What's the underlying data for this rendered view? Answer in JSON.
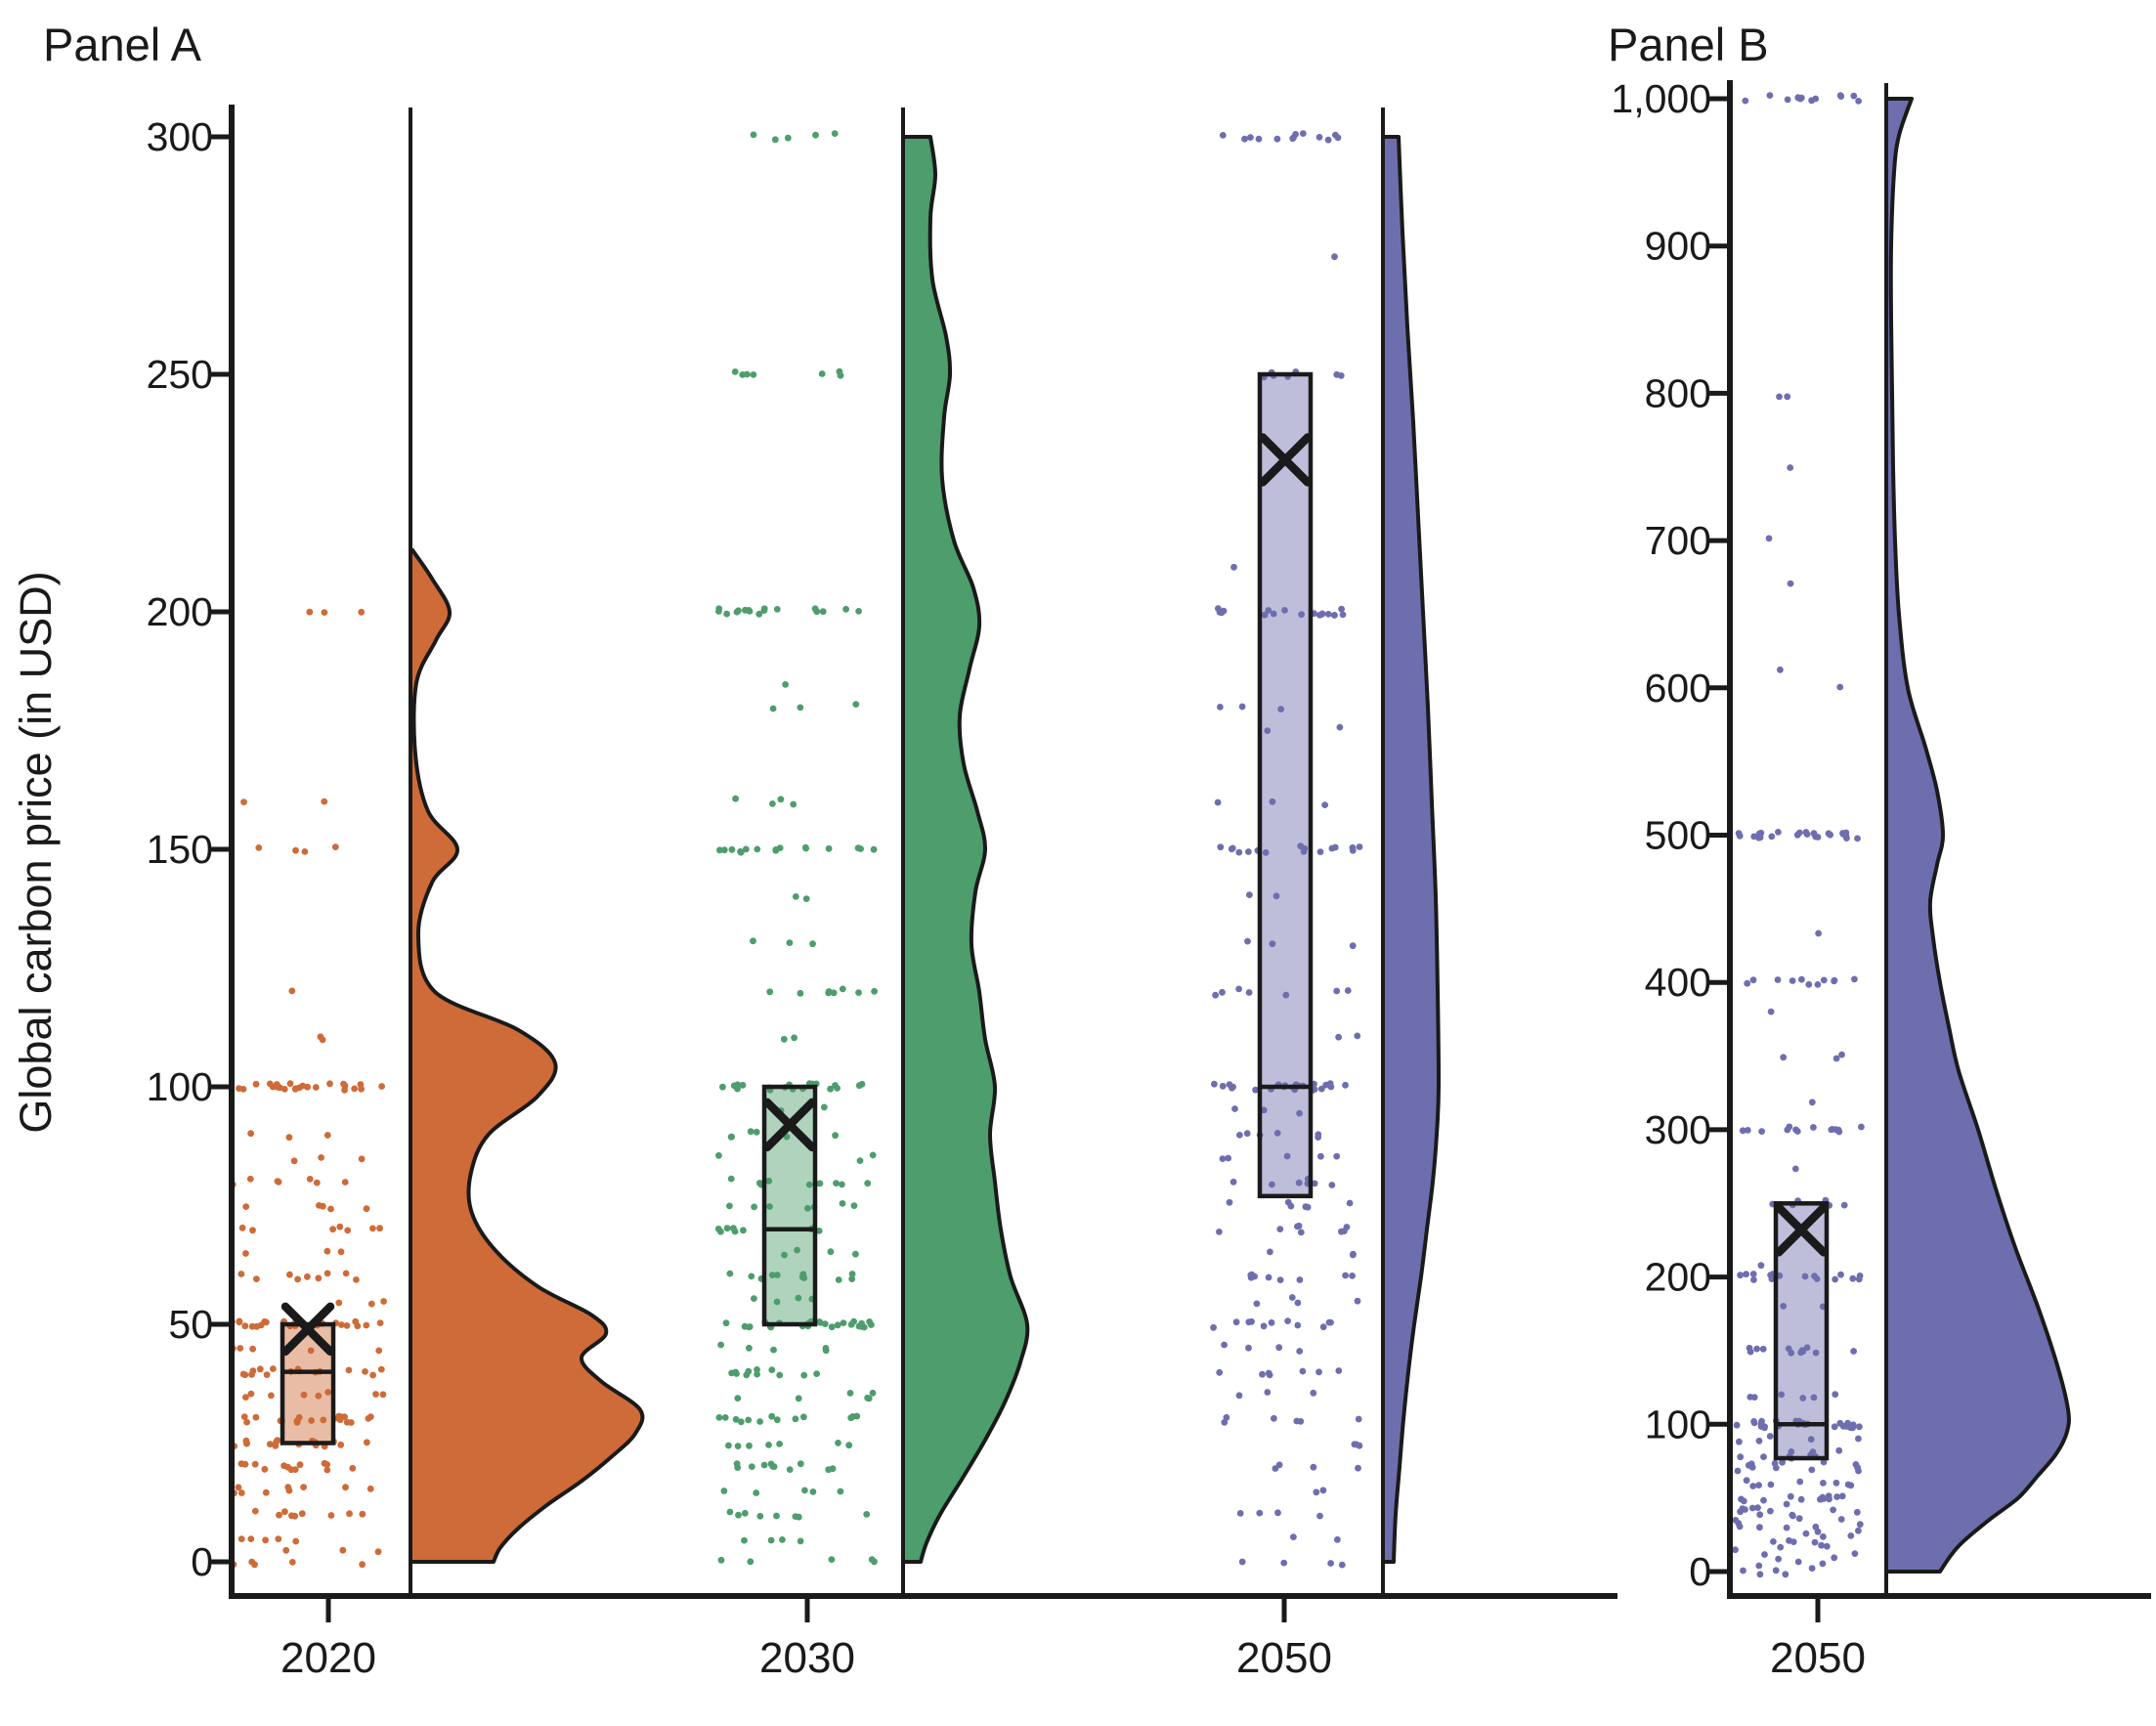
{
  "figure": {
    "panel_a_title": "Panel A",
    "panel_b_title": "Panel B",
    "y_axis_label": "Global carbon price (in USD)"
  },
  "colors": {
    "orange": "#CE6B38",
    "green": "#4E9D6C",
    "purple": "#6E6EAF",
    "ink": "#1a1a1a",
    "box_fill_opacity": 0.45
  },
  "chart_data": [
    {
      "type": "raincloud",
      "panel": "A",
      "title": "Panel A",
      "ylabel": "Global carbon price (in USD)",
      "ylim": [
        0,
        300
      ],
      "ytick_values": [
        0,
        50,
        100,
        150,
        200,
        250,
        300
      ],
      "ytick_labels": [
        "0",
        "50",
        "100",
        "150",
        "200",
        "250",
        "300"
      ],
      "categories": [
        "2020",
        "2030",
        "2050"
      ],
      "legend": "none",
      "grid": false,
      "series": [
        {
          "name": "2020",
          "color": "#CE6B38",
          "box": {
            "q1": 25,
            "median": 40,
            "q3": 50,
            "mean": 49
          },
          "points_by_value": [
            [
              200,
              3
            ],
            [
              160,
              2
            ],
            [
              150,
              4
            ],
            [
              120,
              1
            ],
            [
              110,
              2
            ],
            [
              100,
              24
            ],
            [
              90,
              3
            ],
            [
              85,
              3
            ],
            [
              80,
              7
            ],
            [
              75,
              5
            ],
            [
              70,
              7
            ],
            [
              65,
              3
            ],
            [
              60,
              9
            ],
            [
              55,
              3
            ],
            [
              50,
              26
            ],
            [
              45,
              5
            ],
            [
              40,
              16
            ],
            [
              35,
              8
            ],
            [
              30,
              20
            ],
            [
              25,
              16
            ],
            [
              20,
              13
            ],
            [
              15,
              9
            ],
            [
              10,
              9
            ],
            [
              5,
              5
            ],
            [
              2,
              3
            ],
            [
              0,
              5
            ]
          ],
          "density_profile": [
            [
              213,
              2
            ],
            [
              207,
              22
            ],
            [
              200,
              40
            ],
            [
              194,
              26
            ],
            [
              185,
              6
            ],
            [
              170,
              5
            ],
            [
              158,
              18
            ],
            [
              150,
              48
            ],
            [
              143,
              22
            ],
            [
              132,
              8
            ],
            [
              120,
              25
            ],
            [
              112,
              110
            ],
            [
              105,
              148
            ],
            [
              98,
              130
            ],
            [
              90,
              80
            ],
            [
              82,
              62
            ],
            [
              74,
              62
            ],
            [
              66,
              85
            ],
            [
              58,
              130
            ],
            [
              52,
              185
            ],
            [
              48,
              200
            ],
            [
              43,
              175
            ],
            [
              38,
              195
            ],
            [
              32,
              235
            ],
            [
              27,
              230
            ],
            [
              22,
              205
            ],
            [
              17,
              175
            ],
            [
              12,
              140
            ],
            [
              7,
              110
            ],
            [
              3,
              92
            ],
            [
              0,
              85
            ]
          ]
        },
        {
          "name": "2030",
          "color": "#4E9D6C",
          "box": {
            "q1": 50,
            "median": 70,
            "q3": 100,
            "mean": 92
          },
          "points_by_value": [
            [
              300,
              5
            ],
            [
              250,
              7
            ],
            [
              200,
              17
            ],
            [
              185,
              1
            ],
            [
              180,
              3
            ],
            [
              160,
              4
            ],
            [
              150,
              16
            ],
            [
              140,
              2
            ],
            [
              130,
              3
            ],
            [
              120,
              8
            ],
            [
              110,
              2
            ],
            [
              100,
              20
            ],
            [
              95,
              2
            ],
            [
              90,
              6
            ],
            [
              85,
              3
            ],
            [
              80,
              11
            ],
            [
              75,
              7
            ],
            [
              70,
              9
            ],
            [
              65,
              4
            ],
            [
              60,
              11
            ],
            [
              55,
              4
            ],
            [
              50,
              28
            ],
            [
              45,
              5
            ],
            [
              40,
              11
            ],
            [
              35,
              6
            ],
            [
              30,
              13
            ],
            [
              25,
              7
            ],
            [
              20,
              11
            ],
            [
              15,
              5
            ],
            [
              10,
              8
            ],
            [
              5,
              4
            ],
            [
              0,
              5
            ]
          ],
          "density_profile": [
            [
              300,
              28
            ],
            [
              292,
              33
            ],
            [
              283,
              28
            ],
            [
              270,
              30
            ],
            [
              258,
              44
            ],
            [
              250,
              48
            ],
            [
              241,
              42
            ],
            [
              228,
              40
            ],
            [
              215,
              52
            ],
            [
              205,
              72
            ],
            [
              197,
              78
            ],
            [
              188,
              68
            ],
            [
              178,
              58
            ],
            [
              168,
              62
            ],
            [
              158,
              76
            ],
            [
              150,
              84
            ],
            [
              141,
              74
            ],
            [
              130,
              70
            ],
            [
              120,
              78
            ],
            [
              110,
              84
            ],
            [
              100,
              94
            ],
            [
              90,
              89
            ],
            [
              80,
              94
            ],
            [
              70,
              100
            ],
            [
              60,
              110
            ],
            [
              50,
              127
            ],
            [
              42,
              120
            ],
            [
              34,
              105
            ],
            [
              26,
              85
            ],
            [
              18,
              62
            ],
            [
              10,
              38
            ],
            [
              4,
              24
            ],
            [
              0,
              18
            ]
          ]
        },
        {
          "name": "2050",
          "color": "#6E6EAF",
          "box": {
            "q1": 77,
            "median": 100,
            "q3": 250,
            "mean": 232
          },
          "points_by_value": [
            [
              300,
              13
            ],
            [
              275,
              1
            ],
            [
              250,
              7
            ],
            [
              210,
              1
            ],
            [
              200,
              18
            ],
            [
              180,
              3
            ],
            [
              175,
              2
            ],
            [
              160,
              3
            ],
            [
              150,
              16
            ],
            [
              140,
              2
            ],
            [
              130,
              3
            ],
            [
              120,
              7
            ],
            [
              110,
              2
            ],
            [
              100,
              26
            ],
            [
              95,
              3
            ],
            [
              90,
              6
            ],
            [
              85,
              5
            ],
            [
              80,
              8
            ],
            [
              75,
              6
            ],
            [
              70,
              8
            ],
            [
              65,
              3
            ],
            [
              60,
              9
            ],
            [
              55,
              4
            ],
            [
              50,
              11
            ],
            [
              45,
              4
            ],
            [
              40,
              7
            ],
            [
              35,
              3
            ],
            [
              30,
              6
            ],
            [
              25,
              3
            ],
            [
              20,
              4
            ],
            [
              15,
              2
            ],
            [
              10,
              4
            ],
            [
              5,
              2
            ],
            [
              0,
              4
            ]
          ],
          "density_profile": [
            [
              300,
              16
            ],
            [
              280,
              20
            ],
            [
              260,
              25
            ],
            [
              240,
              31
            ],
            [
              220,
              36
            ],
            [
              200,
              41
            ],
            [
              180,
              46
            ],
            [
              160,
              50
            ],
            [
              140,
              54
            ],
            [
              120,
              56
            ],
            [
              100,
              57
            ],
            [
              90,
              55
            ],
            [
              80,
              51
            ],
            [
              70,
              45
            ],
            [
              60,
              39
            ],
            [
              50,
              32
            ],
            [
              40,
              26
            ],
            [
              30,
              21
            ],
            [
              20,
              17
            ],
            [
              10,
              13
            ],
            [
              0,
              11
            ]
          ]
        }
      ]
    },
    {
      "type": "raincloud",
      "panel": "B",
      "title": "Panel B",
      "ylabel": "",
      "ylim": [
        0,
        1000
      ],
      "ytick_values": [
        0,
        100,
        200,
        300,
        400,
        500,
        600,
        700,
        800,
        900,
        1000
      ],
      "ytick_labels": [
        "0",
        "100",
        "200",
        "300",
        "400",
        "500",
        "600",
        "700",
        "800",
        "900",
        "1,000"
      ],
      "categories": [
        "2050"
      ],
      "legend": "none",
      "grid": false,
      "series": [
        {
          "name": "2050",
          "color": "#6E6EAF",
          "box": {
            "q1": 77,
            "median": 100,
            "q3": 250,
            "mean": 232
          },
          "points_by_value": [
            [
              1000,
              12
            ],
            [
              800,
              2
            ],
            [
              750,
              1
            ],
            [
              700,
              1
            ],
            [
              670,
              1
            ],
            [
              610,
              1
            ],
            [
              600,
              1
            ],
            [
              500,
              24
            ],
            [
              435,
              1
            ],
            [
              400,
              11
            ],
            [
              380,
              1
            ],
            [
              350,
              3
            ],
            [
              320,
              1
            ],
            [
              300,
              14
            ],
            [
              275,
              1
            ],
            [
              250,
              7
            ],
            [
              210,
              1
            ],
            [
              200,
              16
            ],
            [
              180,
              2
            ],
            [
              150,
              12
            ],
            [
              120,
              6
            ],
            [
              100,
              28
            ],
            [
              90,
              5
            ],
            [
              80,
              8
            ],
            [
              75,
              6
            ],
            [
              70,
              7
            ],
            [
              60,
              9
            ],
            [
              50,
              12
            ],
            [
              45,
              4
            ],
            [
              40,
              8
            ],
            [
              35,
              4
            ],
            [
              30,
              6
            ],
            [
              25,
              4
            ],
            [
              20,
              5
            ],
            [
              15,
              3
            ],
            [
              10,
              4
            ],
            [
              5,
              3
            ],
            [
              0,
              5
            ]
          ],
          "density_profile": [
            [
              1000,
              26
            ],
            [
              975,
              13
            ],
            [
              950,
              8
            ],
            [
              900,
              5
            ],
            [
              850,
              5
            ],
            [
              800,
              6
            ],
            [
              750,
              7
            ],
            [
              700,
              9
            ],
            [
              650,
              13
            ],
            [
              600,
              22
            ],
            [
              560,
              40
            ],
            [
              530,
              52
            ],
            [
              500,
              58
            ],
            [
              480,
              52
            ],
            [
              455,
              45
            ],
            [
              430,
              48
            ],
            [
              400,
              55
            ],
            [
              370,
              64
            ],
            [
              340,
              74
            ],
            [
              300,
              94
            ],
            [
              260,
              112
            ],
            [
              220,
              132
            ],
            [
              180,
              155
            ],
            [
              140,
              175
            ],
            [
              110,
              186
            ],
            [
              95,
              185
            ],
            [
              80,
              174
            ],
            [
              65,
              155
            ],
            [
              50,
              135
            ],
            [
              35,
              105
            ],
            [
              20,
              78
            ],
            [
              10,
              65
            ],
            [
              0,
              55
            ]
          ]
        }
      ]
    }
  ]
}
